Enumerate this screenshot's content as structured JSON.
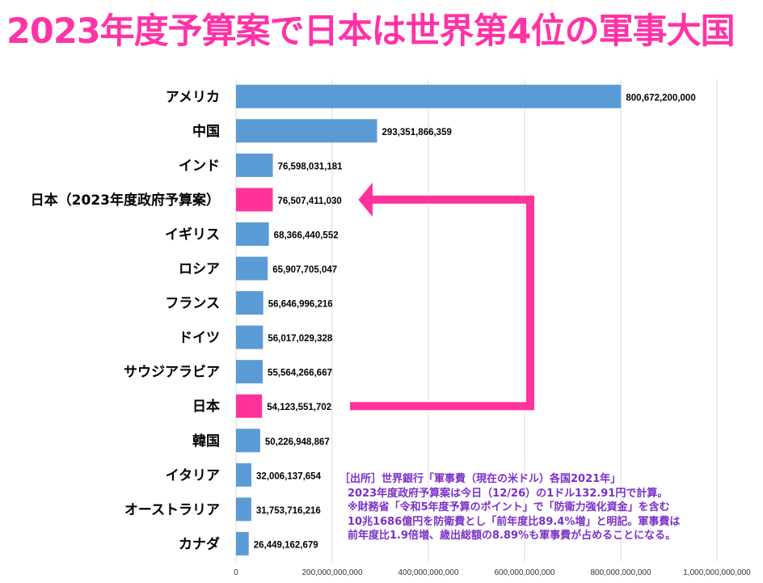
{
  "title": "2023年度予算案で日本は世界第4位の軍事大国",
  "colors": {
    "title": "#ff33a6",
    "bar": "#5b9bd5",
    "highlight": "#ff3399",
    "note": "#7b2fc9",
    "grid": "#d9d9d9"
  },
  "chart_data": {
    "type": "bar",
    "orientation": "horizontal",
    "categories": [
      "アメリカ",
      "中国",
      "インド",
      "日本（2023年度政府予算案）",
      "イギリス",
      "ロシア",
      "フランス",
      "ドイツ",
      "サウジアラビア",
      "日本",
      "韓国",
      "イタリア",
      "オーストラリア",
      "カナダ"
    ],
    "values": [
      800672200000,
      293351866359,
      76598031181,
      76507411030,
      68366440552,
      65907705047,
      56646996216,
      56017029328,
      55564266667,
      54123551702,
      50226948867,
      32006137654,
      31753716216,
      26449162679
    ],
    "value_labels": [
      "800,672,200,000",
      "293,351,866,359",
      "76,598,031,181",
      "76,507,411,030",
      "68,366,440,552",
      "65,907,705,047",
      "56,646,996,216",
      "56,017,029,328",
      "55,564,266,667",
      "54,123,551,702",
      "50,226,948,867",
      "32,006,137,654",
      "31,753,716,216",
      "26,449,162,679"
    ],
    "highlighted": [
      "日本（2023年度政府予算案）",
      "日本"
    ],
    "xlim": [
      0,
      1000000000000
    ],
    "xticks": [
      0,
      200000000000,
      400000000000,
      600000000000,
      800000000000,
      1000000000000
    ],
    "xtick_labels": [
      "0",
      "200,000,000,000",
      "400,000,000,000",
      "600,000,000,000",
      "800,000,000,000",
      "1,000,000,000,000"
    ],
    "grid": true,
    "annotation": "arrow from 日本 to 日本（2023年度政府予算案）"
  },
  "note_lines": [
    "［出所］世界銀行「軍事費（現在の米ドル）各国2021年」",
    "2023年度政府予算案は今日（12/26）の1ドル132.91円で計算。",
    "※財務省「令和5年度予算のポイント」で「防衛力強化資金」を含む",
    "10兆1686億円を防衛費とし「前年度比89.4%増」と明記。軍事費は",
    "前年度比1.9倍増、歳出総額の8.89%も軍事費が占めることになる。"
  ]
}
